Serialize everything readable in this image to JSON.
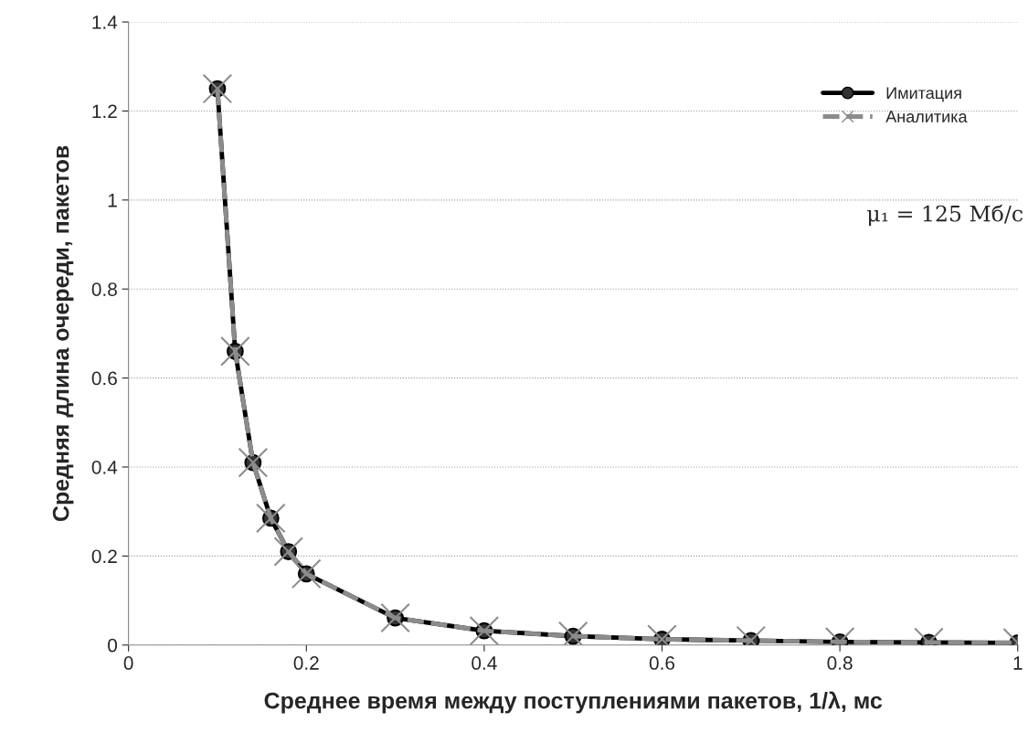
{
  "chart_data": {
    "type": "line",
    "xlabel": "Среднее время между поступлениями пакетов, 1/λ, мс",
    "ylabel": "Средняя длина очереди, пакетов",
    "x": [
      0.1,
      0.12,
      0.14,
      0.16,
      0.18,
      0.2,
      0.3,
      0.4,
      0.5,
      0.6,
      0.7,
      0.8,
      0.9,
      1.0
    ],
    "series": [
      {
        "name": "Имитация",
        "color": "#000000",
        "marker": "circle",
        "line_style": "solid",
        "values": [
          1.25,
          0.66,
          0.41,
          0.285,
          0.21,
          0.16,
          0.061,
          0.032,
          0.02,
          0.013,
          0.01,
          0.007,
          0.006,
          0.005
        ]
      },
      {
        "name": "Аналитика",
        "color": "#8c8c8c",
        "marker": "cross",
        "line_style": "dashed",
        "values": [
          1.25,
          0.66,
          0.41,
          0.285,
          0.21,
          0.16,
          0.061,
          0.032,
          0.02,
          0.013,
          0.01,
          0.007,
          0.006,
          0.005
        ]
      }
    ],
    "xlim": [
      0,
      1
    ],
    "xticks": [
      0,
      0.2,
      0.4,
      0.6,
      0.8,
      1
    ],
    "ylim": [
      0,
      1.4
    ],
    "yticks": [
      0,
      0.2,
      0.4,
      0.6,
      0.8,
      1,
      1.2,
      1.4
    ],
    "grid": "y",
    "legend": "top right",
    "annotations": [
      "μ₁ = 125 Мб/с"
    ]
  }
}
